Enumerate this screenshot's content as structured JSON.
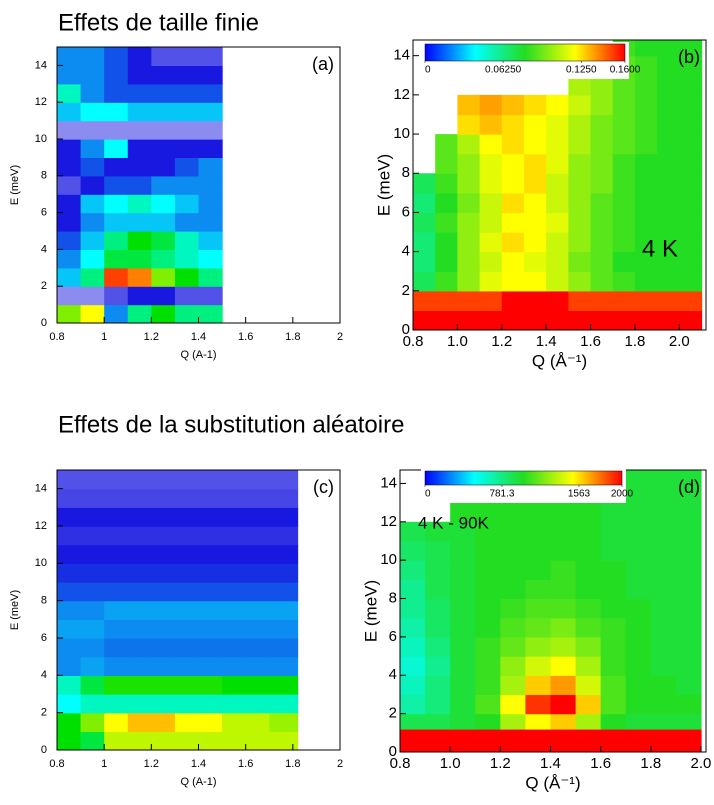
{
  "sections": [
    "Effets de taille finie",
    "Effets de la substitution aléatoire"
  ],
  "chart_data": [
    {
      "type": "heatmap",
      "panel_label": "(a)",
      "xlabel": "Q (A-1)",
      "ylabel": "E (meV)",
      "xlim": [
        0.8,
        2
      ],
      "ylim": [
        0,
        15
      ],
      "xticks": [
        0.8,
        1,
        1.2,
        1.4,
        1.6,
        1.8,
        2
      ],
      "yticks": [
        0,
        2,
        4,
        6,
        8,
        10,
        12,
        14
      ],
      "zlim": [
        0,
        1
      ],
      "colors": [
        "#ffffff",
        "#1818e0",
        "#00ffff",
        "#00e000",
        "#ffff00",
        "#ff0000"
      ],
      "x_edges": [
        0.8,
        0.9,
        1.0,
        1.1,
        1.2,
        1.3,
        1.4,
        1.5
      ],
      "y_edges": [
        0,
        1,
        2,
        3,
        4,
        5,
        6,
        7,
        8,
        9,
        10,
        11,
        12,
        13,
        14,
        15
      ],
      "z": [
        [
          0.7,
          0.8,
          0.3,
          0.5,
          0.6,
          0.5,
          0.5
        ],
        [
          0.1,
          0.1,
          0.15,
          0.2,
          0.2,
          0.15,
          0.15
        ],
        [
          0.35,
          0.5,
          0.95,
          0.9,
          0.7,
          0.6,
          0.5
        ],
        [
          0.3,
          0.4,
          0.55,
          0.55,
          0.5,
          0.45,
          0.4
        ],
        [
          0.25,
          0.35,
          0.5,
          0.6,
          0.55,
          0.45,
          0.35
        ],
        [
          0.2,
          0.3,
          0.35,
          0.35,
          0.35,
          0.3,
          0.3
        ],
        [
          0.2,
          0.35,
          0.4,
          0.45,
          0.4,
          0.35,
          0.3
        ],
        [
          0.15,
          0.2,
          0.25,
          0.25,
          0.3,
          0.3,
          0.3
        ],
        [
          0.2,
          0.25,
          0.2,
          0.2,
          0.2,
          0.25,
          0.3
        ],
        [
          0.2,
          0.3,
          0.4,
          0.2,
          0.2,
          0.2,
          0.2
        ],
        [
          0.1,
          0.1,
          0.1,
          0.1,
          0.1,
          0.1,
          0.1
        ],
        [
          0.35,
          0.4,
          0.4,
          0.35,
          0.35,
          0.35,
          0.35
        ],
        [
          0.45,
          0.3,
          0.25,
          0.25,
          0.25,
          0.25,
          0.25
        ],
        [
          0.3,
          0.3,
          0.25,
          0.2,
          0.2,
          0.2,
          0.2
        ],
        [
          0.3,
          0.3,
          0.25,
          0.2,
          0.15,
          0.15,
          0.15
        ]
      ]
    },
    {
      "type": "heatmap",
      "panel_label": "(b)",
      "annotation": "4 K",
      "xlabel": "Q (Å⁻¹)",
      "ylabel": "E (meV)",
      "xlim": [
        0.8,
        2.12
      ],
      "ylim": [
        0,
        14.8
      ],
      "xticks": [
        0.8,
        {
          "value": 1,
          "label": "1.0"
        },
        1.2,
        1.4,
        1.6,
        1.8,
        {
          "value": 2,
          "label": "2.0"
        }
      ],
      "yticks": [
        0,
        2,
        4,
        6,
        8,
        10,
        12,
        14
      ],
      "zlim": [
        0,
        0.16
      ],
      "colors": [
        "#0000ff",
        "#00ffff",
        "#22dd22",
        "#ffff00",
        "#ff0000"
      ],
      "colorbar_ticks": [
        0,
        {
          "value": 0.0625,
          "label": "0.06250"
        },
        {
          "value": 0.125,
          "label": "0.1250"
        },
        {
          "value": 0.16,
          "label": "0.1600"
        }
      ],
      "x_edges": [
        0.8,
        0.9,
        1.0,
        1.1,
        1.2,
        1.3,
        1.4,
        1.5,
        1.6,
        1.7,
        1.8,
        1.9,
        2.0,
        2.1
      ],
      "y_edges": [
        0,
        1,
        2,
        3,
        4,
        5,
        6,
        7,
        8,
        9,
        10,
        11,
        12,
        13,
        14,
        15
      ],
      "z": [
        [
          0.16,
          0.16,
          0.16,
          0.16,
          0.16,
          0.16,
          0.16,
          0.16,
          0.16,
          0.16,
          0.16,
          0.16,
          0.16
        ],
        [
          0.15,
          0.15,
          0.15,
          0.15,
          0.16,
          0.16,
          0.16,
          0.15,
          0.15,
          0.15,
          0.15,
          0.15,
          0.15
        ],
        [
          0.07,
          0.085,
          0.1,
          0.115,
          0.12,
          0.12,
          0.11,
          0.1,
          0.09,
          0.085,
          0.08,
          0.08,
          0.08
        ],
        [
          0.065,
          0.08,
          0.1,
          0.11,
          0.12,
          0.115,
          0.11,
          0.095,
          0.09,
          0.08,
          0.08,
          0.08,
          0.08
        ],
        [
          0.065,
          0.08,
          0.1,
          0.115,
          0.125,
          0.12,
          0.11,
          0.1,
          0.09,
          0.085,
          0.08,
          0.08,
          0.08
        ],
        [
          0.07,
          0.085,
          0.1,
          0.11,
          0.12,
          0.12,
          0.115,
          0.1,
          0.09,
          0.085,
          0.08,
          0.08,
          0.08
        ],
        [
          0.065,
          0.08,
          0.095,
          0.11,
          0.125,
          0.12,
          0.11,
          0.1,
          0.09,
          0.085,
          0.08,
          0.08,
          0.08
        ],
        [
          0.07,
          0.085,
          0.1,
          0.115,
          0.12,
          0.125,
          0.11,
          0.1,
          0.095,
          0.085,
          0.08,
          0.08,
          0.08
        ],
        [
          null,
          0.09,
          0.1,
          0.115,
          0.12,
          0.125,
          0.115,
          0.1,
          0.095,
          0.085,
          0.08,
          0.08,
          0.08
        ],
        [
          null,
          0.09,
          0.105,
          0.12,
          0.125,
          0.12,
          0.115,
          0.105,
          0.095,
          0.09,
          0.085,
          0.08,
          0.08
        ],
        [
          null,
          null,
          0.125,
          0.13,
          0.125,
          0.12,
          0.115,
          0.105,
          0.095,
          0.09,
          0.085,
          0.08,
          0.08
        ],
        [
          null,
          null,
          0.13,
          0.135,
          0.13,
          0.125,
          0.12,
          0.11,
          0.1,
          0.09,
          0.085,
          0.08,
          0.08
        ],
        [
          null,
          null,
          null,
          null,
          null,
          null,
          null,
          0.105,
          0.1,
          0.09,
          0.085,
          0.08,
          0.08
        ],
        [
          null,
          null,
          null,
          null,
          null,
          null,
          null,
          null,
          0.095,
          0.09,
          0.085,
          0.08,
          0.08
        ],
        [
          null,
          null,
          null,
          null,
          null,
          null,
          null,
          null,
          null,
          0.085,
          0.08,
          0.08,
          0.08
        ]
      ]
    },
    {
      "type": "heatmap",
      "panel_label": "(c)",
      "xlabel": "Q (A-1)",
      "ylabel": "E (meV)",
      "xlim": [
        0.8,
        2
      ],
      "ylim": [
        0,
        15
      ],
      "xticks": [
        0.8,
        1,
        1.2,
        1.4,
        1.6,
        1.8,
        2
      ],
      "yticks": [
        0,
        2,
        4,
        6,
        8,
        10,
        12,
        14
      ],
      "zlim": [
        0,
        1
      ],
      "colors": [
        "#ffffff",
        "#1818e0",
        "#00ffff",
        "#00e000",
        "#ffff00",
        "#ff0000"
      ],
      "x_edges": [
        0.8,
        0.9,
        1.0,
        1.1,
        1.2,
        1.3,
        1.4,
        1.5,
        1.6,
        1.7,
        1.82
      ],
      "y_edges": [
        0,
        1,
        2,
        3,
        4,
        5,
        6,
        7,
        8,
        9,
        10,
        11,
        12,
        13,
        14,
        15
      ],
      "z": [
        [
          0.6,
          0.55,
          0.75,
          0.75,
          0.75,
          0.75,
          0.75,
          0.75,
          0.75,
          0.75
        ],
        [
          0.6,
          0.7,
          0.8,
          0.85,
          0.85,
          0.8,
          0.8,
          0.75,
          0.75,
          0.72
        ],
        [
          0.4,
          0.45,
          0.45,
          0.45,
          0.45,
          0.45,
          0.45,
          0.45,
          0.45,
          0.45
        ],
        [
          0.45,
          0.55,
          0.62,
          0.62,
          0.62,
          0.62,
          0.62,
          0.6,
          0.6,
          0.6
        ],
        [
          0.3,
          0.32,
          0.3,
          0.3,
          0.3,
          0.3,
          0.3,
          0.3,
          0.3,
          0.3
        ],
        [
          0.3,
          0.3,
          0.28,
          0.28,
          0.28,
          0.28,
          0.28,
          0.28,
          0.28,
          0.28
        ],
        [
          0.32,
          0.32,
          0.3,
          0.3,
          0.3,
          0.3,
          0.3,
          0.3,
          0.3,
          0.3
        ],
        [
          0.3,
          0.3,
          0.32,
          0.32,
          0.32,
          0.32,
          0.32,
          0.32,
          0.32,
          0.32
        ],
        [
          0.25,
          0.25,
          0.25,
          0.25,
          0.25,
          0.25,
          0.25,
          0.25,
          0.25,
          0.25
        ],
        [
          0.22,
          0.22,
          0.22,
          0.22,
          0.22,
          0.22,
          0.22,
          0.22,
          0.22,
          0.22
        ],
        [
          0.2,
          0.2,
          0.2,
          0.2,
          0.2,
          0.2,
          0.2,
          0.2,
          0.2,
          0.2
        ],
        [
          0.18,
          0.18,
          0.18,
          0.18,
          0.18,
          0.18,
          0.18,
          0.18,
          0.18,
          0.18
        ],
        [
          0.2,
          0.2,
          0.2,
          0.2,
          0.2,
          0.2,
          0.2,
          0.2,
          0.2,
          0.2
        ],
        [
          0.16,
          0.16,
          0.16,
          0.16,
          0.16,
          0.16,
          0.16,
          0.16,
          0.16,
          0.16
        ],
        [
          0.15,
          0.15,
          0.15,
          0.15,
          0.15,
          0.15,
          0.15,
          0.15,
          0.15,
          0.15
        ]
      ]
    },
    {
      "type": "heatmap",
      "panel_label": "(d)",
      "annotation": "4 K - 90K",
      "xlabel": "Q (Å⁻¹)",
      "ylabel": "E (meV)",
      "xlim": [
        0.8,
        2.02
      ],
      "ylim": [
        0,
        14.7
      ],
      "xticks": [
        0.8,
        {
          "value": 1,
          "label": "1.0"
        },
        1.2,
        1.4,
        1.6,
        1.8,
        {
          "value": 2,
          "label": "2.0"
        }
      ],
      "yticks": [
        0,
        2,
        4,
        6,
        8,
        10,
        12,
        14
      ],
      "zlim": [
        0,
        2000
      ],
      "colors": [
        "#0000ff",
        "#00ffff",
        "#22dd22",
        "#ffff00",
        "#ff0000"
      ],
      "colorbar_ticks": [
        0,
        781.3,
        1563,
        2000
      ],
      "x_edges": [
        0.8,
        0.9,
        1.0,
        1.1,
        1.2,
        1.3,
        1.4,
        1.5,
        1.6,
        1.7,
        1.8,
        1.9,
        2.0
      ],
      "y_edges": [
        0,
        1.2,
        2,
        3,
        4,
        5,
        6,
        7,
        8,
        9,
        10,
        11,
        12,
        13,
        14,
        15
      ],
      "z": [
        [
          2000,
          2000,
          2000,
          2000,
          2000,
          2000,
          2000,
          2000,
          2000,
          2000,
          2000,
          2000
        ],
        [
          900,
          900,
          950,
          1000,
          1300,
          1500,
          1600,
          1300,
          1000,
          950,
          950,
          950
        ],
        [
          700,
          800,
          950,
          1100,
          1500,
          1900,
          2000,
          1600,
          1100,
          1000,
          1000,
          1000
        ],
        [
          650,
          800,
          950,
          1050,
          1300,
          1600,
          1700,
          1400,
          1100,
          1000,
          1000,
          950
        ],
        [
          600,
          750,
          950,
          1050,
          1250,
          1400,
          1500,
          1300,
          1050,
          1000,
          950,
          950
        ],
        [
          650,
          800,
          950,
          1050,
          1150,
          1250,
          1300,
          1200,
          1050,
          1000,
          950,
          950
        ],
        [
          700,
          850,
          950,
          1000,
          1100,
          1150,
          1200,
          1100,
          1050,
          1000,
          950,
          950
        ],
        [
          750,
          850,
          950,
          1000,
          1050,
          1100,
          1100,
          1050,
          1000,
          1000,
          950,
          950
        ],
        [
          750,
          900,
          950,
          1000,
          1000,
          1050,
          1050,
          1000,
          1000,
          950,
          950,
          950
        ],
        [
          800,
          900,
          950,
          1000,
          1000,
          1000,
          1050,
          1000,
          1000,
          950,
          950,
          950
        ],
        [
          850,
          900,
          950,
          1000,
          1000,
          1000,
          1000,
          1000,
          950,
          950,
          950,
          950
        ],
        [
          900,
          950,
          950,
          1000,
          1000,
          1000,
          1000,
          1000,
          950,
          950,
          950,
          950
        ],
        [
          null,
          null,
          1000,
          1000,
          1000,
          1000,
          1000,
          1000,
          950,
          950,
          950,
          950
        ],
        [
          null,
          null,
          null,
          1000,
          1000,
          1000,
          1000,
          1000,
          950,
          950,
          950,
          950
        ],
        [
          null,
          null,
          null,
          null,
          null,
          1000,
          1000,
          1000,
          950,
          950,
          950,
          950
        ]
      ]
    }
  ]
}
